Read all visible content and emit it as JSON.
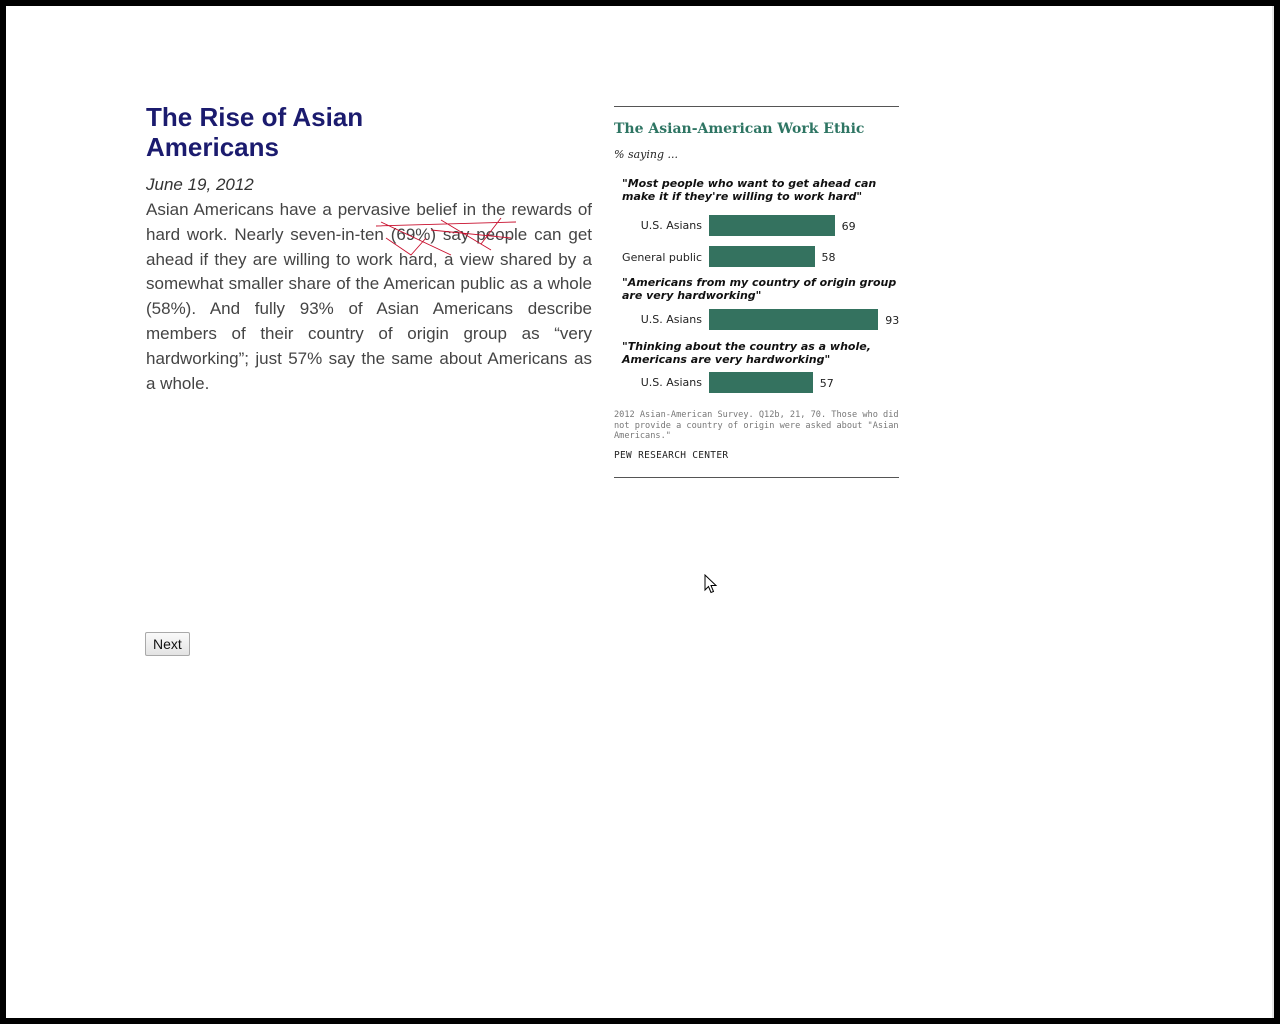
{
  "article": {
    "title": "The Rise of Asian Americans",
    "date": "June 19, 2012",
    "body": "Asian Americans have a pervasive belief in the rewards of hard work. Nearly seven-in-ten (69%) say people can get ahead if they are willing to work hard, a view shared by a somewhat smaller share of the American public as a whole (58%). And fully 93% of Asian Americans describe members of their country of origin group as “very hardworking”; just 57% say the same about Americans as a whole."
  },
  "navigation": {
    "next_label": "Next"
  },
  "colors": {
    "title": "#1b1b6e",
    "chart_bar": "#34725f",
    "chart_title": "#2e7563"
  },
  "chart_data": {
    "type": "bar",
    "orientation": "horizontal",
    "title": "The Asian-American Work Ethic",
    "subtitle": "% saying ...",
    "groups": [
      {
        "question": "\"Most people who want to get ahead can make it if they're willing to work hard\"",
        "bars": [
          {
            "label": "U.S. Asians",
            "value": 69
          },
          {
            "label": "General public",
            "value": 58
          }
        ]
      },
      {
        "question": "\"Americans from my country of origin group are very hardworking\"",
        "bars": [
          {
            "label": "U.S. Asians",
            "value": 93
          }
        ]
      },
      {
        "question": "\"Thinking about the country as a whole, Americans are very hardworking\"",
        "bars": [
          {
            "label": "U.S. Asians",
            "value": 57
          }
        ]
      }
    ],
    "note": "2012 Asian-American Survey. Q12b, 21, 70. Those who did not provide a country of origin were asked about \"Asian Americans.\"",
    "source": "PEW RESEARCH CENTER"
  }
}
